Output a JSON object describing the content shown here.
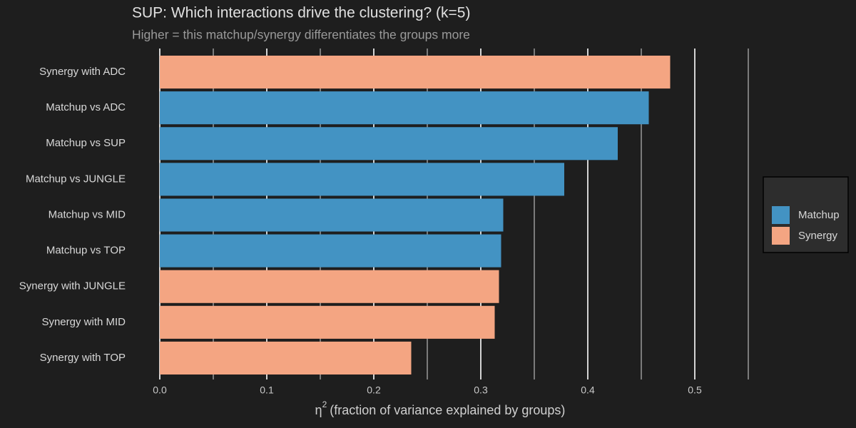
{
  "chart_data": {
    "type": "barh",
    "title": "SUP: Which interactions drive the clustering? (k=5)",
    "subtitle": "Higher = this matchup/synergy differentiates the groups more",
    "xlabel": {
      "symbol": "η",
      "superscript": "2",
      "text": "(fraction of variance explained by groups)"
    },
    "categories": [
      "Synergy with ADC",
      "Matchup vs ADC",
      "Matchup vs SUP",
      "Matchup vs JUNGLE",
      "Matchup vs MID",
      "Matchup vs TOP",
      "Synergy with JUNGLE",
      "Synergy with MID",
      "Synergy with TOP"
    ],
    "series": [
      {
        "name": "Matchup",
        "color": "#4393c3",
        "values": [
          null,
          0.457,
          0.428,
          0.378,
          0.321,
          0.319,
          null,
          null,
          null
        ]
      },
      {
        "name": "Synergy",
        "color": "#f4a582",
        "values": [
          0.477,
          null,
          null,
          null,
          null,
          null,
          0.317,
          0.313,
          0.235
        ]
      }
    ],
    "xlim": [
      0,
      0.56
    ],
    "xticks": [
      {
        "value": 0,
        "label": "0.0"
      },
      0.1,
      0.2,
      0.3,
      0.4,
      0.5
    ],
    "minor_xticks": [
      0.05,
      0.15,
      0.25,
      0.35,
      0.45,
      0.55
    ],
    "grid": true,
    "legend": "right"
  }
}
